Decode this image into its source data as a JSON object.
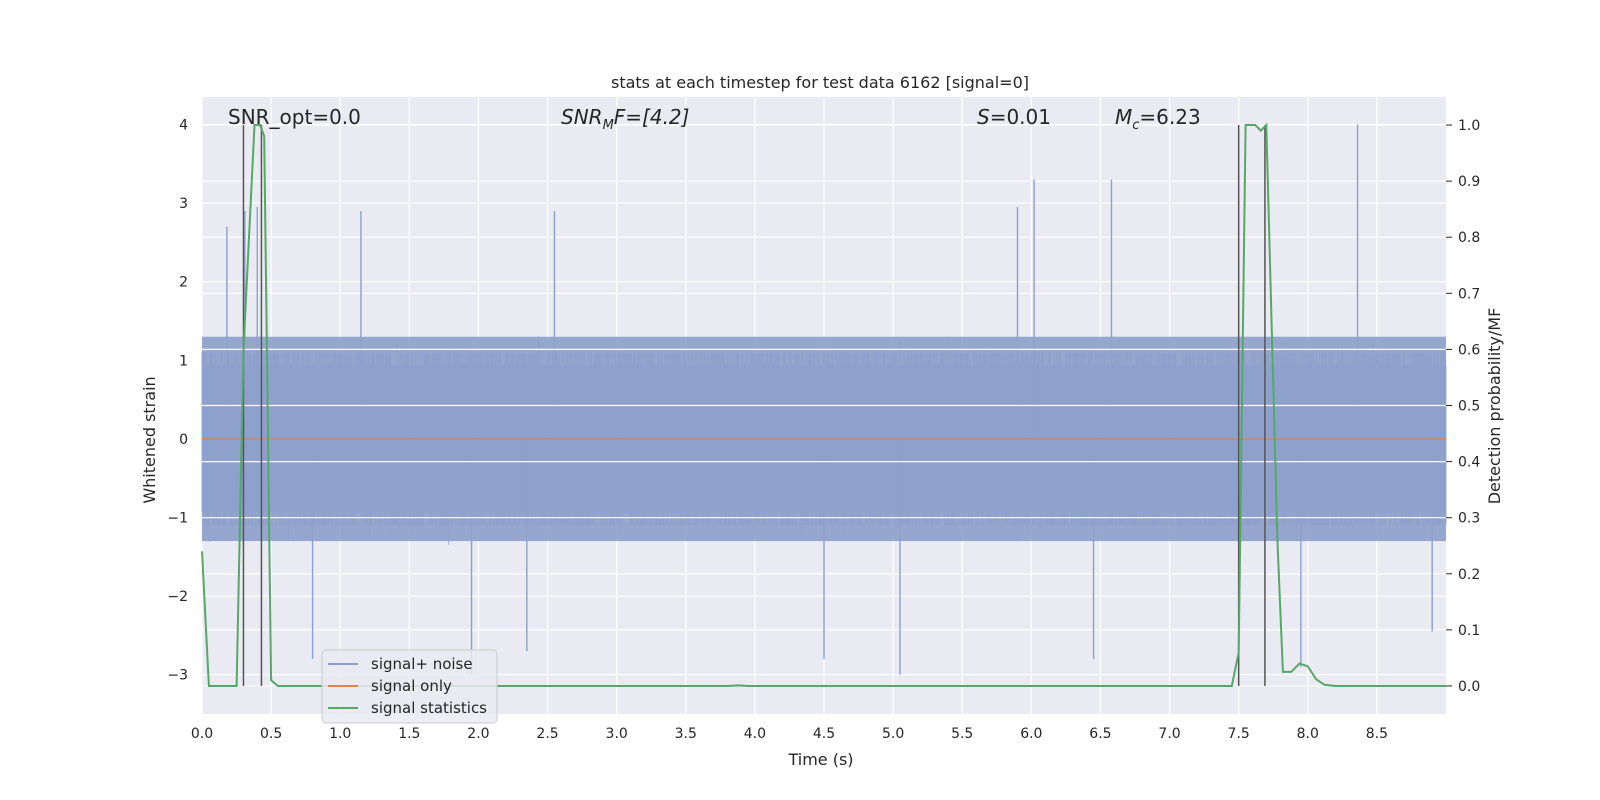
{
  "chart_data": {
    "type": "line",
    "title": "stats at each timestep for test data 6162 [signal=0]",
    "xlabel": "Time (s)",
    "ylabel": "Whitened strain",
    "y2label": "Detection probability/MF",
    "xlim": [
      0,
      9.0
    ],
    "ylim": [
      -3.5,
      4.35
    ],
    "y2lim": [
      -0.05,
      1.05
    ],
    "xticks": [
      0.0,
      0.5,
      1.0,
      1.5,
      2.0,
      2.5,
      3.0,
      3.5,
      4.0,
      4.5,
      5.0,
      5.5,
      6.0,
      6.5,
      7.0,
      7.5,
      8.0,
      8.5
    ],
    "xtick_labels": [
      "0.0",
      "0.5",
      "1.0",
      "1.5",
      "2.0",
      "2.5",
      "3.0",
      "3.5",
      "4.0",
      "4.5",
      "5.0",
      "5.5",
      "6.0",
      "6.5",
      "7.0",
      "7.5",
      "8.0",
      "8.5"
    ],
    "yticks": [
      -3,
      -2,
      -1,
      0,
      1,
      2,
      3,
      4
    ],
    "ytick_labels": [
      "−3",
      "−2",
      "−1",
      "0",
      "1",
      "2",
      "3",
      "4"
    ],
    "y2ticks": [
      0.0,
      0.1,
      0.2,
      0.3,
      0.4,
      0.5,
      0.6,
      0.7,
      0.8,
      0.9,
      1.0
    ],
    "y2tick_labels": [
      "0.0",
      "0.1",
      "0.2",
      "0.3",
      "0.4",
      "0.5",
      "0.6",
      "0.7",
      "0.8",
      "0.9",
      "1.0"
    ],
    "annotations": {
      "snr_opt": "SNR_opt=0.0",
      "snr_mf_base": "SNR",
      "snr_mf_sub": "M",
      "snr_mf_rest": "F=[4.2]",
      "s_base": "S",
      "s_rest": "=0.01",
      "mc_base": "M",
      "mc_sub": "c",
      "mc_rest": "=6.23"
    },
    "legend": {
      "position": "lower-left",
      "entries": [
        {
          "label": "signal+ noise",
          "color": "#8da0cb"
        },
        {
          "label": "signal only",
          "color": "#dd8452"
        },
        {
          "label": "signal statistics",
          "color": "#55a868"
        }
      ]
    },
    "series": [
      {
        "name": "signal+ noise",
        "color": "#8da0cb",
        "description": "whitened strain noise, roughly +/-1.3 band with spikes to about +/-3",
        "band": [
          -1.3,
          1.3
        ],
        "spikes": [
          {
            "x": 0.31,
            "y": 2.9
          },
          {
            "x": 0.18,
            "y": 2.7
          },
          {
            "x": 0.4,
            "y": 2.95
          },
          {
            "x": 1.15,
            "y": 2.9
          },
          {
            "x": 2.55,
            "y": 2.9
          },
          {
            "x": 5.9,
            "y": 2.95
          },
          {
            "x": 6.02,
            "y": 3.3
          },
          {
            "x": 6.58,
            "y": 3.3
          },
          {
            "x": 8.36,
            "y": 4.0
          },
          {
            "x": 0.8,
            "y": -2.8
          },
          {
            "x": 1.95,
            "y": -3.0
          },
          {
            "x": 2.35,
            "y": -2.7
          },
          {
            "x": 4.5,
            "y": -2.8
          },
          {
            "x": 5.05,
            "y": -3.0
          },
          {
            "x": 6.45,
            "y": -2.8
          },
          {
            "x": 7.95,
            "y": -2.9
          },
          {
            "x": 8.9,
            "y": -2.45
          }
        ]
      },
      {
        "name": "signal only",
        "color": "#dd8452",
        "x": [
          0.0,
          9.0
        ],
        "y": [
          0.0,
          0.0
        ]
      },
      {
        "name": "signal statistics",
        "color": "#55a868",
        "axis": "y2",
        "x": [
          0.0,
          0.05,
          0.25,
          0.3,
          0.38,
          0.42,
          0.45,
          0.5,
          0.55,
          3.8,
          3.88,
          3.95,
          7.45,
          7.5,
          7.55,
          7.62,
          7.66,
          7.7,
          7.78,
          7.82,
          7.88,
          7.94,
          8.0,
          8.06,
          8.12,
          8.2,
          9.0
        ],
        "y": [
          0.24,
          0.0,
          0.0,
          0.6,
          1.0,
          1.0,
          0.98,
          0.01,
          0.0,
          0.0,
          0.001,
          0.0,
          0.0,
          0.06,
          1.0,
          1.0,
          0.99,
          1.0,
          0.26,
          0.025,
          0.025,
          0.04,
          0.035,
          0.012,
          0.002,
          0.0,
          0.0
        ]
      }
    ],
    "vlines": [
      0.3,
      0.43,
      7.5,
      7.69
    ]
  }
}
